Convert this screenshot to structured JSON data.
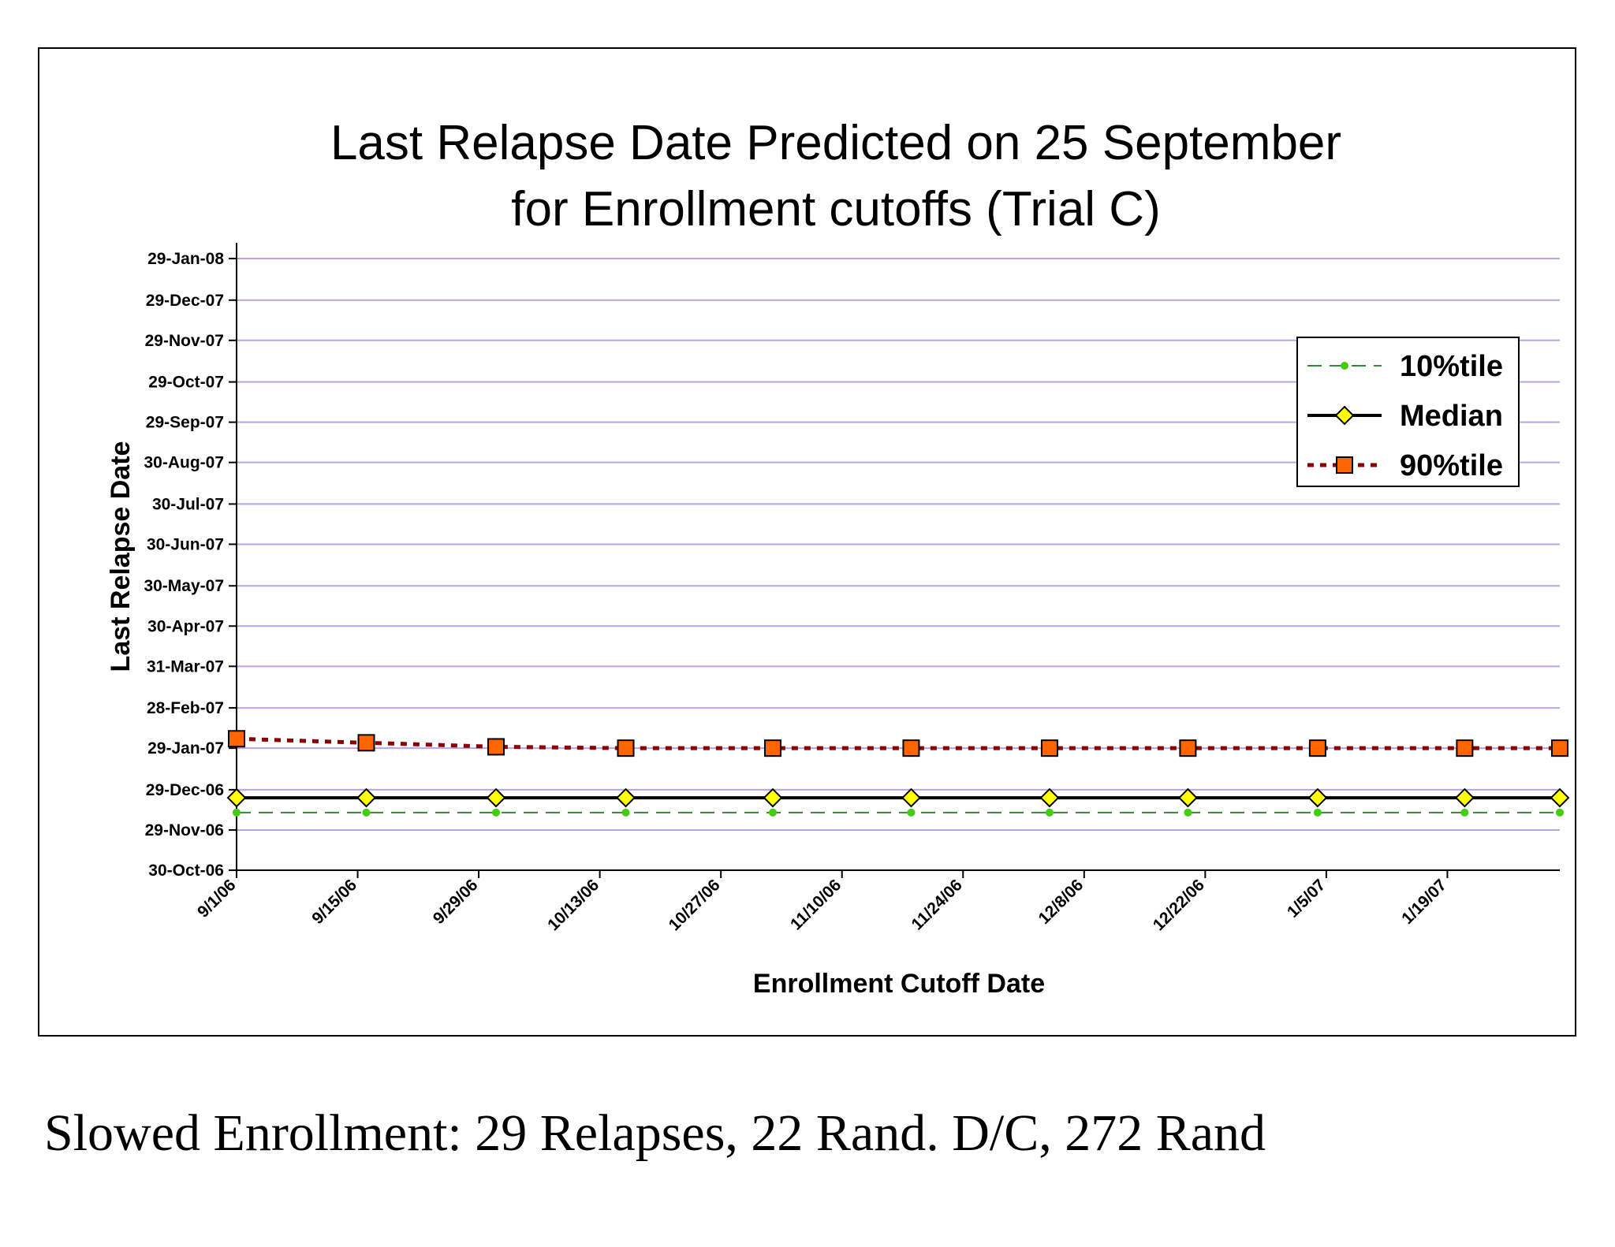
{
  "chart_data": {
    "type": "line",
    "title": [
      "Last Relapse Date Predicted on 25 September",
      "for Enrollment cutoffs (Trial C)"
    ],
    "xlabel": "Enrollment Cutoff Date",
    "ylabel": "Last Relapse Date",
    "x_ticks": [
      "9/1/06",
      "9/15/06",
      "9/29/06",
      "10/13/06",
      "10/27/06",
      "11/10/06",
      "11/24/06",
      "12/8/06",
      "12/22/06",
      "1/5/07",
      "1/19/07"
    ],
    "xlim": [
      "2006-09-01",
      "2007-02-01"
    ],
    "y_ticks": [
      "30-Oct-06",
      "29-Nov-06",
      "29-Dec-06",
      "29-Jan-07",
      "28-Feb-07",
      "31-Mar-07",
      "30-Apr-07",
      "30-May-07",
      "30-Jun-07",
      "30-Jul-07",
      "30-Aug-07",
      "29-Sep-07",
      "29-Oct-07",
      "29-Nov-07",
      "29-Dec-07",
      "29-Jan-08"
    ],
    "ylim": [
      "2006-10-30",
      "2008-01-29"
    ],
    "grid": true,
    "grid_color": "#b9a3e6",
    "legend_position": "top-right",
    "x": [
      "2006-09-01",
      "2006-09-16",
      "2006-10-01",
      "2006-10-16",
      "2006-11-02",
      "2006-11-18",
      "2006-12-04",
      "2006-12-20",
      "2007-01-04",
      "2007-01-21",
      "2007-02-01"
    ],
    "series": [
      {
        "name": "10%tile",
        "color": "#2e8b2e",
        "marker": "circle",
        "marker_color": "#44cc11",
        "line_style": "dashed",
        "values": [
          "2006-12-12",
          "2006-12-12",
          "2006-12-12",
          "2006-12-12",
          "2006-12-12",
          "2006-12-12",
          "2006-12-12",
          "2006-12-12",
          "2006-12-12",
          "2006-12-12",
          "2006-12-12"
        ]
      },
      {
        "name": "Median",
        "color": "#000000",
        "marker": "diamond",
        "marker_color": "#ffff00",
        "line_style": "solid",
        "values": [
          "2006-12-23",
          "2006-12-23",
          "2006-12-23",
          "2006-12-23",
          "2006-12-23",
          "2006-12-23",
          "2006-12-23",
          "2006-12-23",
          "2006-12-23",
          "2006-12-23",
          "2006-12-23"
        ]
      },
      {
        "name": "90%tile",
        "color": "#8b0000",
        "marker": "square",
        "marker_color": "#ff6600",
        "line_style": "dotted",
        "values": [
          "2007-02-05",
          "2007-02-02",
          "2007-01-30",
          "2007-01-29",
          "2007-01-29",
          "2007-01-29",
          "2007-01-29",
          "2007-01-29",
          "2007-01-29",
          "2007-01-29",
          "2007-01-29"
        ]
      }
    ]
  },
  "footnote": "Slowed Enrollment: 29 Relapses,  22 Rand. D/C, 272 Rand"
}
